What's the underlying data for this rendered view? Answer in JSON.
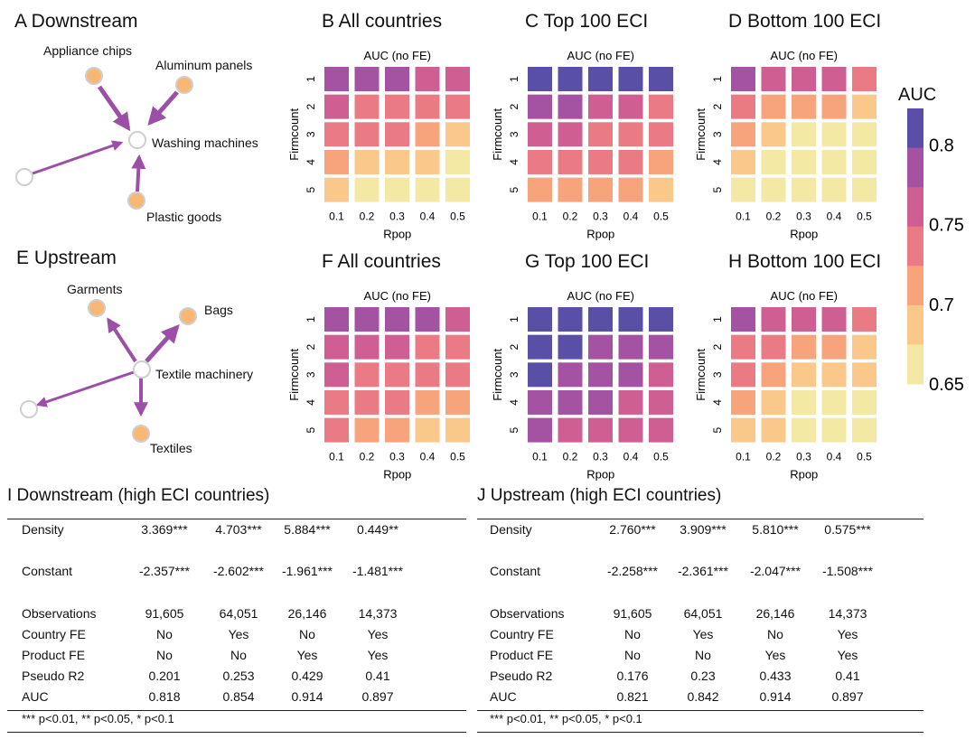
{
  "downstream_network": {
    "title": "A Downstream",
    "center_label": "Washing machines",
    "nodes": [
      "Appliance chips",
      "Aluminum panels",
      "Plastic goods"
    ]
  },
  "upstream_network": {
    "title": "E Upstream",
    "center_label": "Textile machinery",
    "nodes": [
      "Garments",
      "Bags",
      "Textiles"
    ]
  },
  "colorbar": {
    "title": "AUC",
    "ticks": [
      "0.8",
      "0.75",
      "0.7",
      "0.65"
    ],
    "colors": [
      "#5a4fa6",
      "#a353a2",
      "#cf5e93",
      "#ea7b84",
      "#f7a47c",
      "#fac88a",
      "#f4e9a4"
    ]
  },
  "chart_data": [
    {
      "type": "heatmap",
      "title": "B All countries",
      "subtitle": "AUC (no FE)",
      "xlabel": "Rpop",
      "ylabel": "Firmcount",
      "x": [
        "0.1",
        "0.2",
        "0.3",
        "0.4",
        "0.5"
      ],
      "y": [
        "1",
        "2",
        "3",
        "4",
        "5"
      ],
      "values": [
        [
          0.775,
          0.775,
          0.775,
          0.76,
          0.76
        ],
        [
          0.76,
          0.74,
          0.74,
          0.74,
          0.74
        ],
        [
          0.74,
          0.74,
          0.74,
          0.72,
          0.7
        ],
        [
          0.72,
          0.7,
          0.7,
          0.7,
          0.66
        ],
        [
          0.7,
          0.66,
          0.66,
          0.66,
          0.66
        ]
      ]
    },
    {
      "type": "heatmap",
      "title": "C Top 100 ECI",
      "subtitle": "AUC (no FE)",
      "xlabel": "Rpop",
      "ylabel": "Firmcount",
      "x": [
        "0.1",
        "0.2",
        "0.3",
        "0.4",
        "0.5"
      ],
      "y": [
        "1",
        "2",
        "3",
        "4",
        "5"
      ],
      "values": [
        [
          0.8,
          0.8,
          0.8,
          0.8,
          0.8
        ],
        [
          0.775,
          0.775,
          0.76,
          0.76,
          0.74
        ],
        [
          0.76,
          0.76,
          0.74,
          0.74,
          0.74
        ],
        [
          0.74,
          0.74,
          0.74,
          0.74,
          0.72
        ],
        [
          0.72,
          0.72,
          0.72,
          0.72,
          0.7
        ]
      ]
    },
    {
      "type": "heatmap",
      "title": "D Bottom 100 ECI",
      "subtitle": "AUC (no FE)",
      "xlabel": "Rpop",
      "ylabel": "Firmcount",
      "x": [
        "0.1",
        "0.2",
        "0.3",
        "0.4",
        "0.5"
      ],
      "y": [
        "1",
        "2",
        "3",
        "4",
        "5"
      ],
      "values": [
        [
          0.775,
          0.76,
          0.76,
          0.76,
          0.74
        ],
        [
          0.74,
          0.72,
          0.72,
          0.72,
          0.7
        ],
        [
          0.72,
          0.7,
          0.66,
          0.66,
          0.66
        ],
        [
          0.7,
          0.66,
          0.66,
          0.66,
          0.66
        ],
        [
          0.66,
          0.66,
          0.66,
          0.66,
          0.66
        ]
      ]
    },
    {
      "type": "heatmap",
      "title": "F All countries",
      "subtitle": "AUC (no FE)",
      "xlabel": "Rpop",
      "ylabel": "Firmcount",
      "x": [
        "0.1",
        "0.2",
        "0.3",
        "0.4",
        "0.5"
      ],
      "y": [
        "1",
        "2",
        "3",
        "4",
        "5"
      ],
      "values": [
        [
          0.775,
          0.775,
          0.775,
          0.775,
          0.76
        ],
        [
          0.76,
          0.76,
          0.76,
          0.74,
          0.74
        ],
        [
          0.76,
          0.74,
          0.74,
          0.74,
          0.74
        ],
        [
          0.74,
          0.74,
          0.74,
          0.72,
          0.72
        ],
        [
          0.74,
          0.72,
          0.72,
          0.7,
          0.7
        ]
      ]
    },
    {
      "type": "heatmap",
      "title": "G Top 100 ECI",
      "subtitle": "AUC (no FE)",
      "xlabel": "Rpop",
      "ylabel": "Firmcount",
      "x": [
        "0.1",
        "0.2",
        "0.3",
        "0.4",
        "0.5"
      ],
      "y": [
        "1",
        "2",
        "3",
        "4",
        "5"
      ],
      "values": [
        [
          0.8,
          0.8,
          0.8,
          0.8,
          0.8
        ],
        [
          0.8,
          0.8,
          0.775,
          0.775,
          0.775
        ],
        [
          0.8,
          0.775,
          0.775,
          0.775,
          0.76
        ],
        [
          0.775,
          0.775,
          0.775,
          0.76,
          0.76
        ],
        [
          0.775,
          0.76,
          0.76,
          0.76,
          0.76
        ]
      ]
    },
    {
      "type": "heatmap",
      "title": "H Bottom 100 ECI",
      "subtitle": "AUC (no FE)",
      "xlabel": "Rpop",
      "ylabel": "Firmcount",
      "x": [
        "0.1",
        "0.2",
        "0.3",
        "0.4",
        "0.5"
      ],
      "y": [
        "1",
        "2",
        "3",
        "4",
        "5"
      ],
      "values": [
        [
          0.775,
          0.76,
          0.76,
          0.76,
          0.74
        ],
        [
          0.74,
          0.74,
          0.72,
          0.72,
          0.7
        ],
        [
          0.74,
          0.72,
          0.7,
          0.7,
          0.7
        ],
        [
          0.72,
          0.7,
          0.66,
          0.66,
          0.66
        ],
        [
          0.7,
          0.7,
          0.66,
          0.66,
          0.66
        ]
      ]
    },
    {
      "type": "table",
      "title": "I Downstream (high ECI countries)",
      "rows": [
        [
          "Density",
          "3.369***",
          "4.703***",
          "5.884***",
          "0.449**"
        ],
        [
          "Constant",
          "-2.357***",
          "-2.602***",
          "-1.961***",
          "-1.481***"
        ],
        [
          "Observations",
          "91,605",
          "64,051",
          "26,146",
          "14,373"
        ],
        [
          "Country FE",
          "No",
          "Yes",
          "No",
          "Yes"
        ],
        [
          "Product FE",
          "No",
          "No",
          "Yes",
          "Yes"
        ],
        [
          "Pseudo R2",
          "0.201",
          "0.253",
          "0.429",
          "0.41"
        ],
        [
          "AUC",
          "0.818",
          "0.854",
          "0.914",
          "0.897"
        ]
      ],
      "note": "*** p<0.01, ** p<0.05, * p<0.1"
    },
    {
      "type": "table",
      "title": "J Upstream (high ECI countries)",
      "rows": [
        [
          "Density",
          "2.760***",
          "3.909***",
          "5.810***",
          "0.575***"
        ],
        [
          "Constant",
          "-2.258***",
          "-2.361***",
          "-2.047***",
          "-1.508***"
        ],
        [
          "Observations",
          "91,605",
          "64,051",
          "26,146",
          "14,373"
        ],
        [
          "Country FE",
          "No",
          "Yes",
          "No",
          "Yes"
        ],
        [
          "Product FE",
          "No",
          "No",
          "Yes",
          "Yes"
        ],
        [
          "Pseudo R2",
          "0.176",
          "0.23",
          "0.433",
          "0.41"
        ],
        [
          "AUC",
          "0.821",
          "0.842",
          "0.914",
          "0.897"
        ]
      ],
      "note": "*** p<0.01, ** p<0.05, * p<0.1"
    }
  ]
}
